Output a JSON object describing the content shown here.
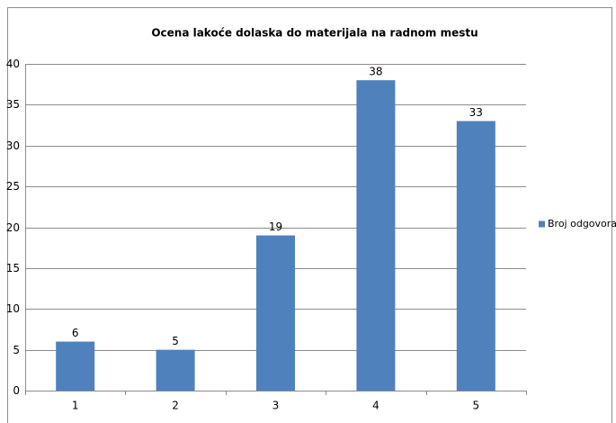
{
  "chart_data": {
    "type": "bar",
    "title": "Ocena lakoće dolaska do materijala na radnom mestu",
    "categories": [
      "1",
      "2",
      "3",
      "4",
      "5"
    ],
    "series": [
      {
        "name": "Broj odgovora",
        "color": "#4f81bd",
        "values": [
          6,
          5,
          19,
          38,
          33
        ]
      }
    ],
    "ylim": [
      0,
      40
    ],
    "yticks": [
      0,
      5,
      10,
      15,
      20,
      25,
      30,
      35,
      40
    ],
    "grid": true,
    "legend": "right"
  }
}
